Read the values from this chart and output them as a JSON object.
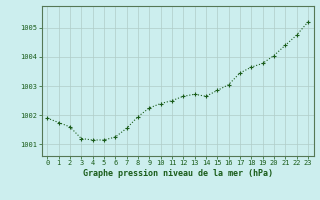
{
  "x": [
    0,
    1,
    2,
    3,
    4,
    5,
    6,
    7,
    8,
    9,
    10,
    11,
    12,
    13,
    14,
    15,
    16,
    17,
    18,
    19,
    20,
    21,
    22,
    23
  ],
  "y": [
    1001.9,
    1001.75,
    1001.6,
    1001.2,
    1001.15,
    1001.15,
    1001.25,
    1001.55,
    1001.95,
    1002.25,
    1002.4,
    1002.5,
    1002.65,
    1002.72,
    1002.65,
    1002.85,
    1003.05,
    1003.45,
    1003.65,
    1003.78,
    1004.05,
    1004.4,
    1004.75,
    1005.2
  ],
  "line_color": "#1a5c1a",
  "marker_color": "#1a5c1a",
  "bg_color": "#cceeee",
  "grid_color": "#b0ccc8",
  "xlabel": "Graphe pression niveau de la mer (hPa)",
  "label_color": "#1a5c1a",
  "ylim_min": 1000.6,
  "ylim_max": 1005.75,
  "yticks": [
    1001,
    1002,
    1003,
    1004,
    1005
  ],
  "xticks": [
    0,
    1,
    2,
    3,
    4,
    5,
    6,
    7,
    8,
    9,
    10,
    11,
    12,
    13,
    14,
    15,
    16,
    17,
    18,
    19,
    20,
    21,
    22,
    23
  ],
  "xtick_labels": [
    "0",
    "1",
    "2",
    "3",
    "4",
    "5",
    "6",
    "7",
    "8",
    "9",
    "10",
    "11",
    "12",
    "13",
    "14",
    "15",
    "16",
    "17",
    "18",
    "19",
    "20",
    "21",
    "22",
    "23"
  ],
  "tick_color": "#1a5c1a",
  "tick_fontsize": 5.0,
  "label_fontsize": 6.0,
  "ytick_fontsize": 5.0,
  "line_width": 0.8,
  "marker_size": 2.5,
  "spine_color": "#557755"
}
